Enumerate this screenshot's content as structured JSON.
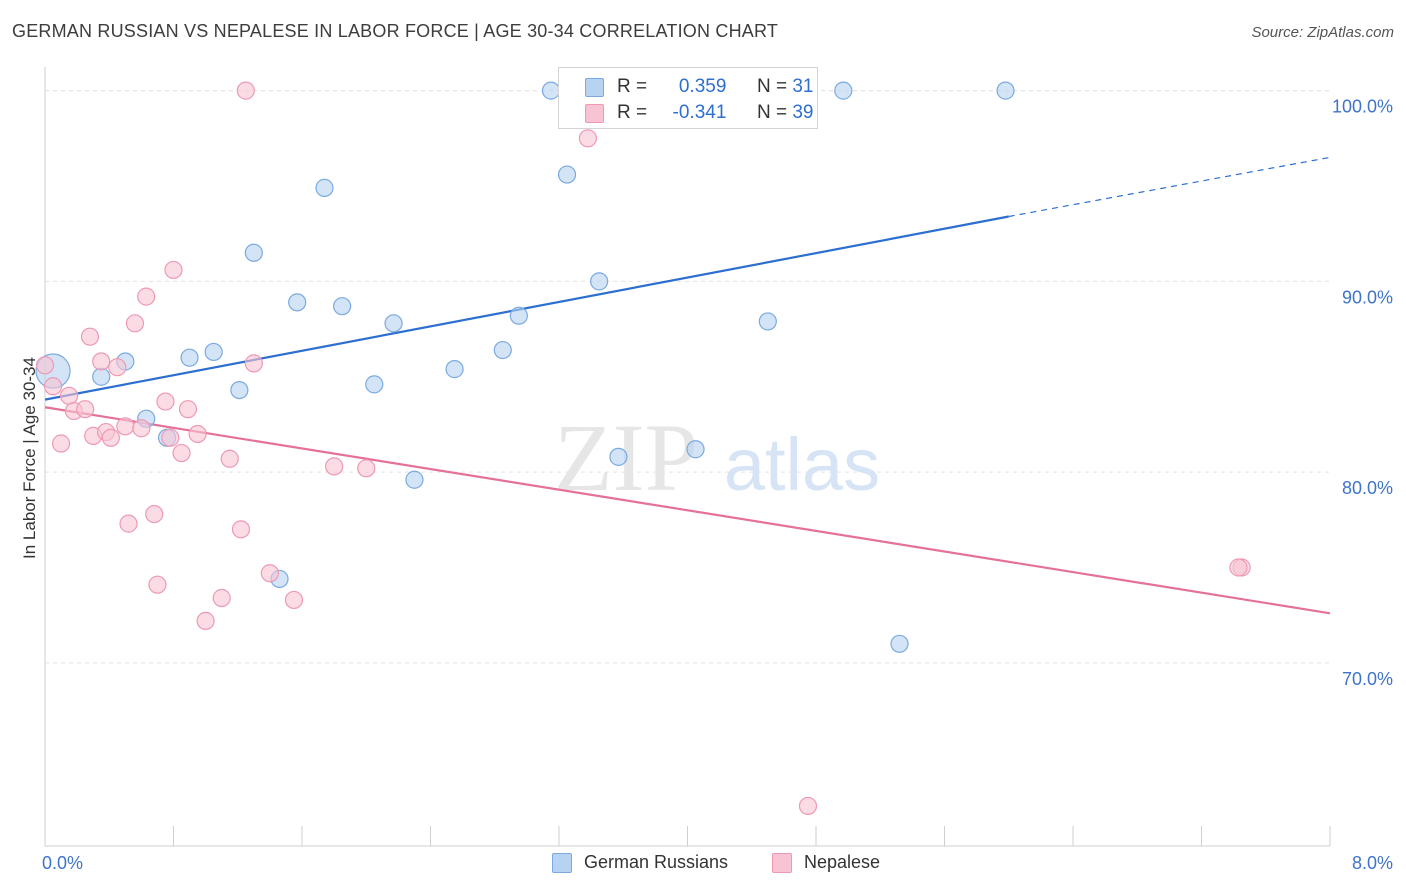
{
  "title": "GERMAN RUSSIAN VS NEPALESE IN LABOR FORCE | AGE 30-34 CORRELATION CHART",
  "source": "Source: ZipAtlas.com",
  "watermark": {
    "zip": "ZIP",
    "atlas": "atlas"
  },
  "legend": {
    "r_label": "R =",
    "n_label": "N =",
    "german_russians": {
      "r": "0.359",
      "n": "31"
    },
    "nepalese": {
      "r": "-0.341",
      "n": "39"
    }
  },
  "colors": {
    "blue_fill": "#b8d2f2",
    "blue_stroke": "#7aaae0",
    "blue_line": "#2d6fd0",
    "pink_fill": "#f8c4d4",
    "pink_stroke": "#ee99b4",
    "pink_line": "#e5709a",
    "tick_label": "#3f74c9"
  },
  "chart_data": {
    "type": "scatter",
    "title": "GERMAN RUSSIAN VS NEPALESE IN LABOR FORCE | AGE 30-34 CORRELATION CHART",
    "xlabel": "",
    "ylabel": "In Labor Force | Age 30-34",
    "xlim": [
      0,
      8
    ],
    "ylim": [
      60.4,
      101.5
    ],
    "x_tick_labels": [
      "0.0%",
      "8.0%"
    ],
    "y_ticks": [
      70,
      80,
      90,
      100
    ],
    "y_tick_labels": [
      "70.0%",
      "80.0%",
      "90.0%",
      "100.0%"
    ],
    "grid": true,
    "legend_position": "top-center",
    "series": [
      {
        "name": "German Russians",
        "color": "#b8d2f2",
        "points": [
          [
            0.05,
            85.3
          ],
          [
            0.35,
            85.0
          ],
          [
            0.5,
            85.8
          ],
          [
            0.63,
            82.8
          ],
          [
            0.76,
            81.8
          ],
          [
            0.9,
            86.0
          ],
          [
            1.05,
            86.3
          ],
          [
            1.21,
            84.3
          ],
          [
            1.3,
            91.5
          ],
          [
            1.46,
            74.4
          ],
          [
            1.57,
            88.9
          ],
          [
            1.74,
            94.9
          ],
          [
            1.85,
            88.7
          ],
          [
            2.05,
            84.6
          ],
          [
            2.17,
            87.8
          ],
          [
            2.3,
            79.6
          ],
          [
            2.55,
            85.4
          ],
          [
            2.85,
            86.4
          ],
          [
            2.95,
            88.2
          ],
          [
            3.15,
            100.0
          ],
          [
            3.25,
            95.6
          ],
          [
            3.45,
            90.0
          ],
          [
            3.57,
            80.8
          ],
          [
            4.05,
            81.2
          ],
          [
            4.38,
            100.0
          ],
          [
            4.5,
            87.9
          ],
          [
            4.75,
            100.0
          ],
          [
            4.97,
            100.0
          ],
          [
            5.32,
            71.0
          ],
          [
            5.98,
            100.0
          ],
          [
            3.35,
            100.0
          ]
        ],
        "trend": {
          "x0": 0.0,
          "y0": 83.8,
          "x1": 6.0,
          "y1": 93.4,
          "dash_to_x": 8.0,
          "dash_to_y": 96.5
        }
      },
      {
        "name": "Nepalese",
        "color": "#f8c4d4",
        "points": [
          [
            0.0,
            85.6
          ],
          [
            0.05,
            84.5
          ],
          [
            0.1,
            81.5
          ],
          [
            0.15,
            84.0
          ],
          [
            0.18,
            83.2
          ],
          [
            0.25,
            83.3
          ],
          [
            0.28,
            87.1
          ],
          [
            0.3,
            81.9
          ],
          [
            0.35,
            85.8
          ],
          [
            0.38,
            82.1
          ],
          [
            0.41,
            81.8
          ],
          [
            0.45,
            85.5
          ],
          [
            0.5,
            82.4
          ],
          [
            0.52,
            77.3
          ],
          [
            0.56,
            87.8
          ],
          [
            0.6,
            82.3
          ],
          [
            0.63,
            89.2
          ],
          [
            0.68,
            77.8
          ],
          [
            0.7,
            74.1
          ],
          [
            0.75,
            83.7
          ],
          [
            0.8,
            90.6
          ],
          [
            0.85,
            81.0
          ],
          [
            0.89,
            83.3
          ],
          [
            0.95,
            82.0
          ],
          [
            1.0,
            72.2
          ],
          [
            1.1,
            73.4
          ],
          [
            1.15,
            80.7
          ],
          [
            1.22,
            77.0
          ],
          [
            1.25,
            100.0
          ],
          [
            1.3,
            85.7
          ],
          [
            1.4,
            74.7
          ],
          [
            1.55,
            73.3
          ],
          [
            1.8,
            80.3
          ],
          [
            2.0,
            80.2
          ],
          [
            3.38,
            97.5
          ],
          [
            4.75,
            62.5
          ],
          [
            7.45,
            75.0
          ],
          [
            0.78,
            81.8
          ],
          [
            7.43,
            75.0
          ]
        ],
        "trend": {
          "x0": 0.0,
          "y0": 83.4,
          "x1": 8.0,
          "y1": 72.6
        }
      }
    ]
  }
}
